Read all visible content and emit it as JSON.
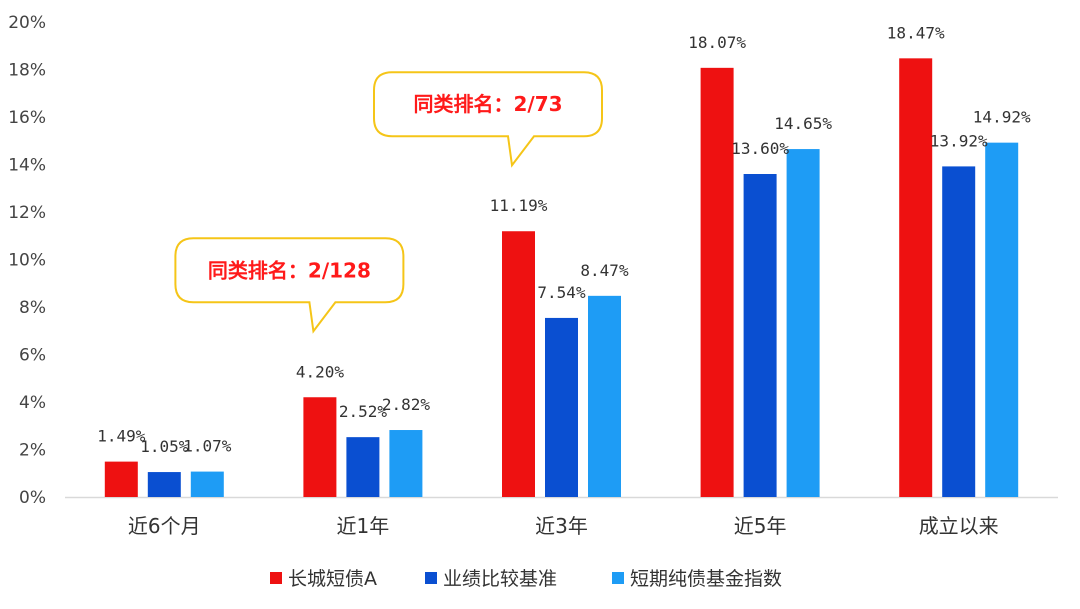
{
  "chart_data": {
    "type": "bar",
    "categories": [
      "近6个月",
      "近1年",
      "近3年",
      "近5年",
      "成立以来"
    ],
    "series": [
      {
        "name": "长城短债A",
        "color": "#ee1111",
        "values": [
          1.49,
          4.2,
          11.19,
          18.07,
          18.47
        ]
      },
      {
        "name": "业绩比较基准",
        "color": "#0a4fd1",
        "values": [
          1.05,
          2.52,
          7.54,
          13.6,
          13.92
        ]
      },
      {
        "name": "短期纯债基金指数",
        "color": "#1e9cf5",
        "values": [
          1.07,
          2.82,
          8.47,
          14.65,
          14.92
        ]
      }
    ],
    "data_labels": [
      [
        "1.49%",
        "4.20%",
        "11.19%",
        "18.07%",
        "18.47%"
      ],
      [
        "1.05%",
        "2.52%",
        "7.54%",
        "13.60%",
        "13.92%"
      ],
      [
        "1.07%",
        "2.82%",
        "8.47%",
        "14.65%",
        "14.92%"
      ]
    ],
    "y_ticks": [
      "0%",
      "2%",
      "4%",
      "6%",
      "8%",
      "10%",
      "12%",
      "14%",
      "16%",
      "18%",
      "20%"
    ],
    "ylim": [
      0,
      20
    ],
    "grid": false,
    "legend_position": "bottom",
    "annotations": [
      {
        "text": "同类排名：2/128",
        "category": "近1年"
      },
      {
        "text": "同类排名：2/73",
        "category": "近3年"
      }
    ],
    "callout_border_color": "#f5c518",
    "callout_text_color": "#ff1a1a"
  }
}
